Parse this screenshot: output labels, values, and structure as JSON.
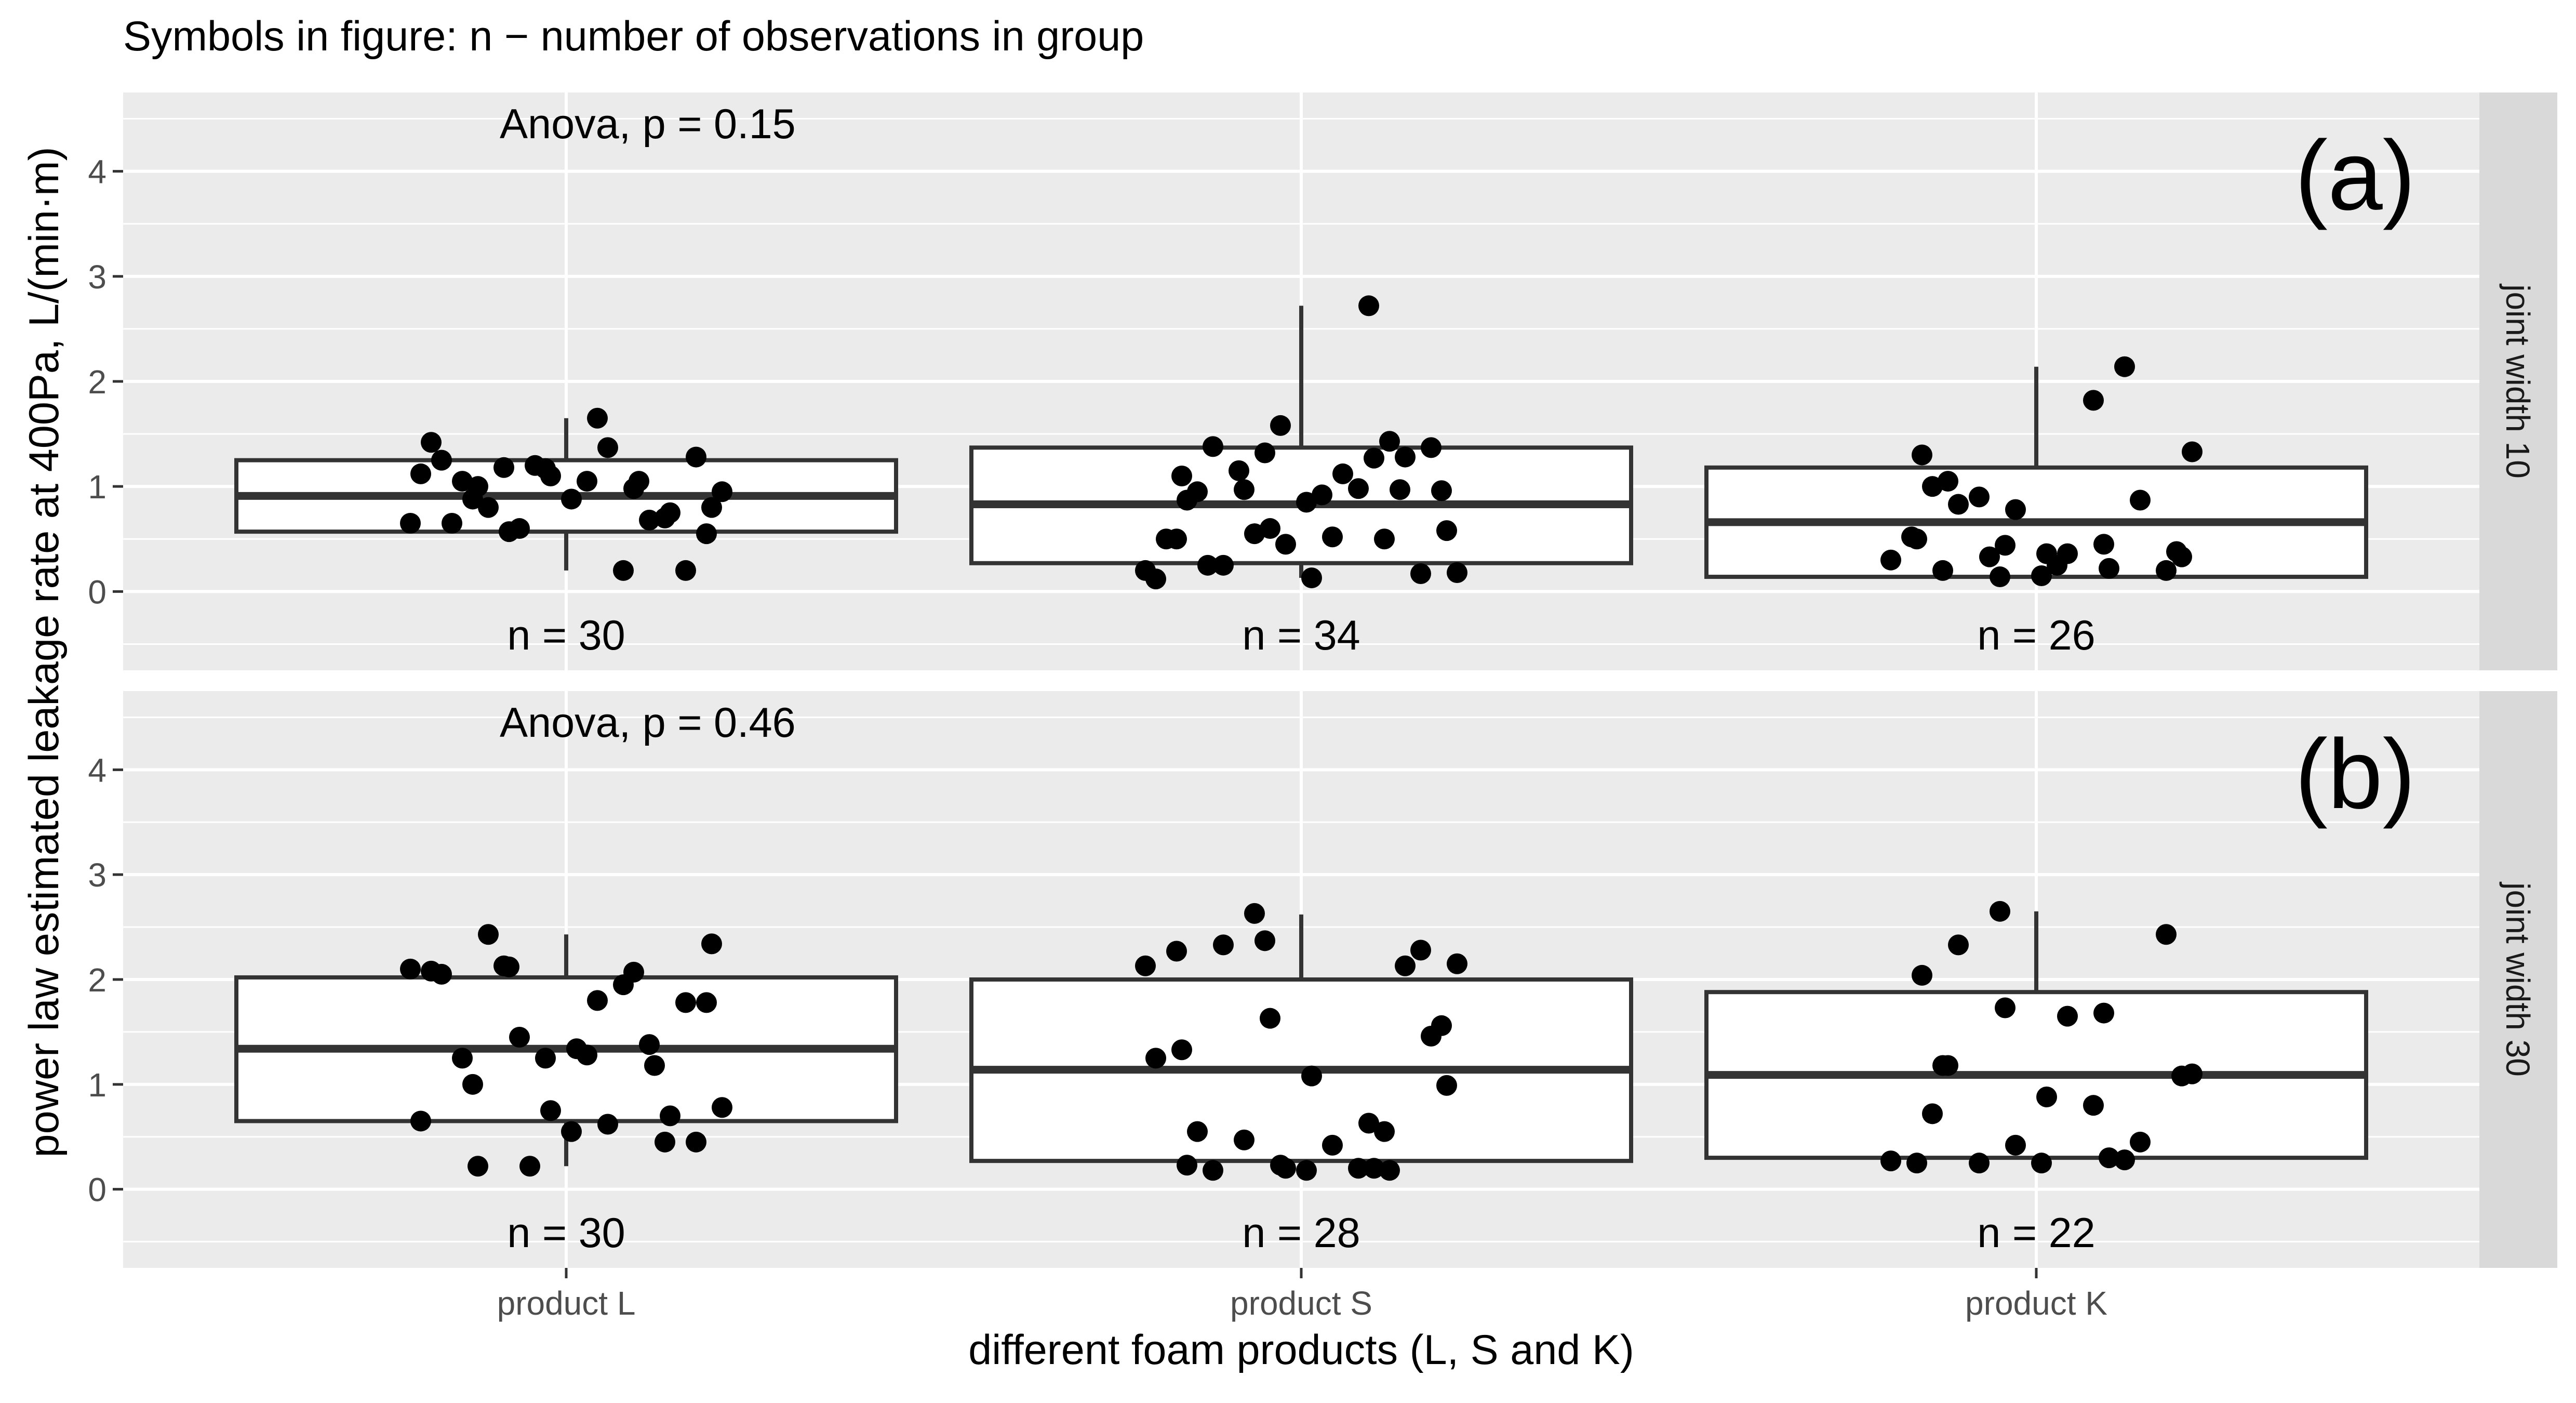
{
  "header": {
    "caption": "Symbols in figure: n − number of observations in group"
  },
  "chart_data": {
    "type": "box",
    "xlabel": "different foam products (L, S and K)",
    "ylabel": "power law estimated leakage rate at 400Pa, L/(min·m)",
    "categories": [
      "product L",
      "product S",
      "product K"
    ],
    "y_ticks": [
      0,
      1,
      2,
      3,
      4
    ],
    "ylim": [
      -0.75,
      4.75
    ],
    "grid": true,
    "panels": [
      {
        "panel_label": "(a)",
        "strip": "joint width 10",
        "anova": "Anova, p = 0.15",
        "groups": [
          {
            "category": "product L",
            "n_label": "n = 30",
            "box": {
              "whisker_low": 0.2,
              "q1": 0.57,
              "median": 0.91,
              "q3": 1.25,
              "whisker_high": 1.65
            },
            "points": [
              0.65,
              1.05,
              1.2,
              0.95,
              0.88,
              1.05,
              1.42,
              0.7,
              1.18,
              1.37,
              0.65,
              0.2,
              1.1,
              0.68,
              1.25,
              0.55,
              0.6,
              0.88,
              1.05,
              0.2,
              0.8,
              1.28,
              1.12,
              1.65,
              0.75,
              1.17,
              0.98,
              0.57,
              0.8,
              1.0
            ]
          },
          {
            "category": "product S",
            "n_label": "n = 34",
            "box": {
              "whisker_low": 0.13,
              "q1": 0.27,
              "median": 0.83,
              "q3": 1.37,
              "whisker_high": 2.72
            },
            "points": [
              0.97,
              1.15,
              1.12,
              0.2,
              0.17,
              0.45,
              0.5,
              0.5,
              0.96,
              0.55,
              0.85,
              0.95,
              0.98,
              0.25,
              1.37,
              0.12,
              0.52,
              1.28,
              1.58,
              2.72,
              0.97,
              0.58,
              1.38,
              0.13,
              1.32,
              1.43,
              1.1,
              0.87,
              1.27,
              0.6,
              0.18,
              0.25,
              0.92,
              0.5
            ]
          },
          {
            "category": "product K",
            "n_label": "n = 26",
            "box": {
              "whisker_low": 0.14,
              "q1": 0.14,
              "median": 0.66,
              "q3": 1.18,
              "whisker_high": 2.14
            },
            "points": [
              0.52,
              0.38,
              0.33,
              0.15,
              1.0,
              1.82,
              0.83,
              0.2,
              0.3,
              0.36,
              0.87,
              0.78,
              0.45,
              0.9,
              0.33,
              1.05,
              0.36,
              0.14,
              2.14,
              0.5,
              1.3,
              0.22,
              0.44,
              1.33,
              0.2,
              0.25
            ]
          }
        ]
      },
      {
        "panel_label": "(b)",
        "strip": "joint width 30",
        "anova": "Anova, p = 0.46",
        "groups": [
          {
            "category": "product L",
            "n_label": "n = 30",
            "box": {
              "whisker_low": 0.22,
              "q1": 0.65,
              "median": 1.34,
              "q3": 2.02,
              "whisker_high": 2.43
            },
            "points": [
              0.78,
              1.0,
              1.28,
              2.08,
              0.45,
              2.13,
              0.62,
              2.1,
              1.78,
              0.75,
              1.38,
              2.05,
              1.78,
              1.45,
              0.55,
              1.25,
              1.95,
              2.43,
              0.45,
              0.65,
              1.8,
              0.7,
              1.25,
              2.07,
              2.12,
              2.34,
              0.22,
              1.34,
              0.22,
              1.18
            ]
          },
          {
            "category": "product S",
            "n_label": "n = 28",
            "box": {
              "whisker_low": 0.18,
              "q1": 0.27,
              "median": 1.14,
              "q3": 2.0,
              "whisker_high": 2.62
            },
            "points": [
              2.13,
              2.28,
              0.2,
              0.55,
              2.27,
              1.56,
              2.63,
              0.18,
              0.55,
              0.2,
              2.33,
              1.46,
              1.25,
              0.42,
              2.13,
              0.23,
              0.63,
              0.47,
              0.99,
              0.18,
              1.08,
              2.37,
              0.18,
              1.33,
              0.23,
              0.2,
              1.63,
              2.15
            ]
          },
          {
            "category": "product K",
            "n_label": "n = 22",
            "box": {
              "whisker_low": 0.25,
              "q1": 0.3,
              "median": 1.09,
              "q3": 1.88,
              "whisker_high": 2.65
            },
            "points": [
              0.25,
              0.72,
              0.8,
              2.33,
              2.43,
              0.27,
              1.65,
              0.45,
              0.42,
              1.68,
              0.25,
              1.08,
              1.18,
              0.88,
              2.65,
              0.28,
              0.25,
              2.04,
              0.3,
              1.73,
              1.1,
              1.18
            ]
          }
        ]
      }
    ]
  }
}
